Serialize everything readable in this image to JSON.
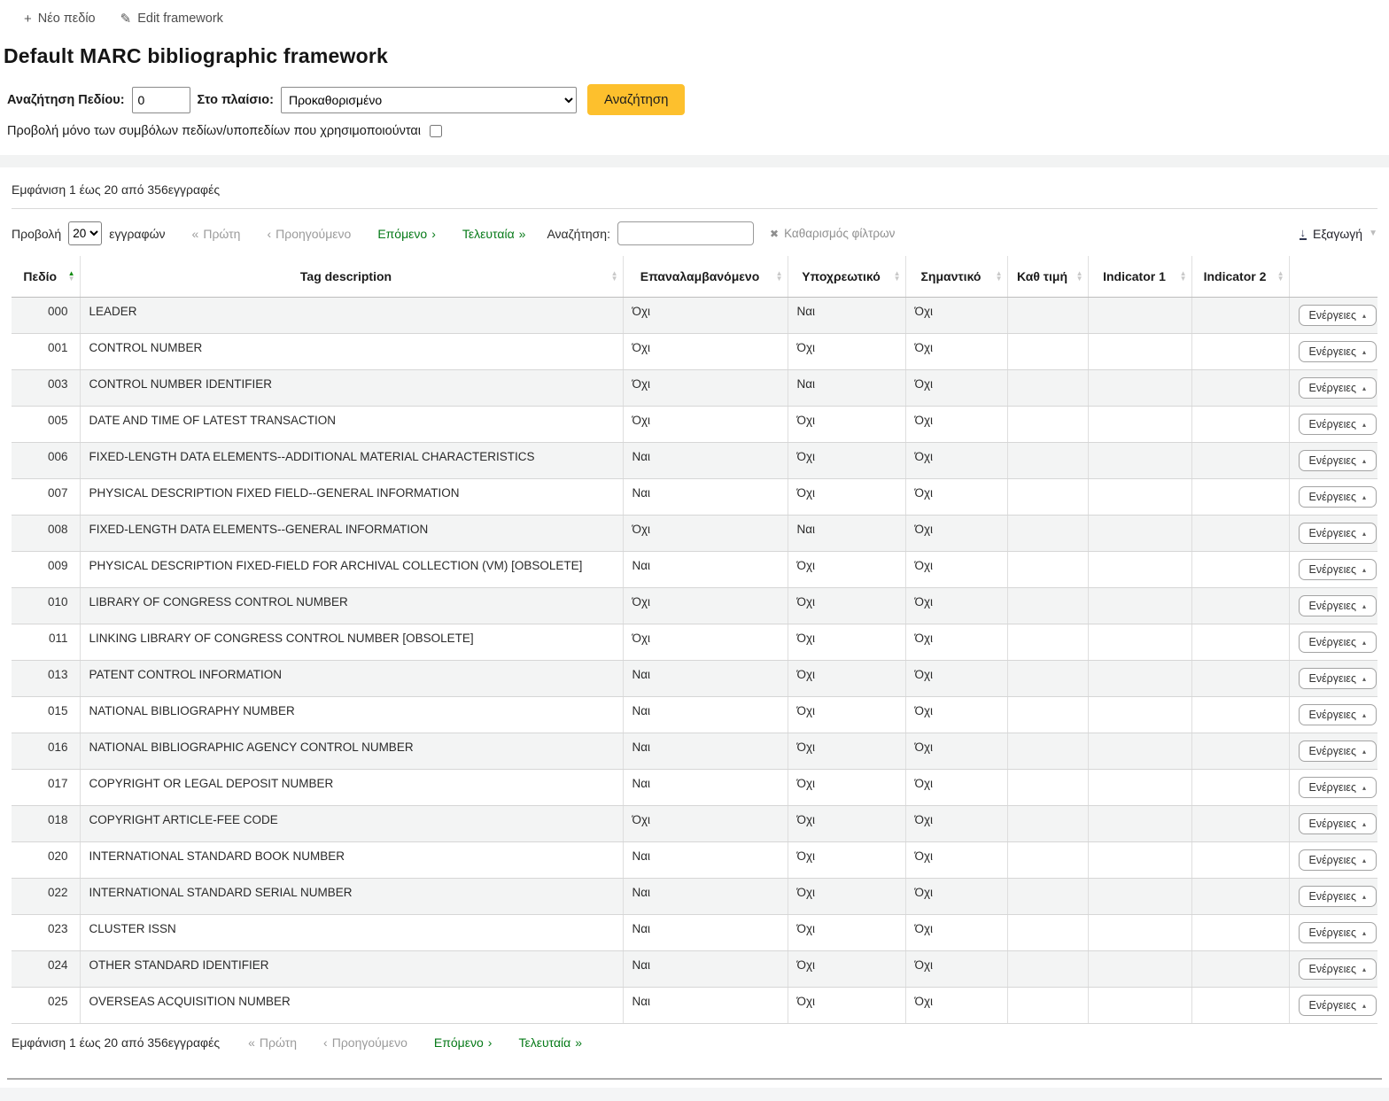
{
  "toolbar": {
    "new_field_label": "Νέο πεδίο",
    "edit_framework_label": "Edit framework"
  },
  "page": {
    "title": "Default MARC bibliographic framework"
  },
  "search_form": {
    "field_label": "Αναζήτηση Πεδίου:",
    "field_value": "0",
    "context_label": "Στο πλαίσιο:",
    "context_selected": "Προκαθορισμένο",
    "submit_label": "Αναζήτηση",
    "checkbox_label": "Προβολή μόνο των συμβόλων πεδίων/υποπεδίων που χρησιμοποιούνται"
  },
  "datatable": {
    "info": "Εμφάνιση 1 έως 20 από 356εγγραφές",
    "length_label_before": "Προβολή",
    "length_value": "20",
    "length_label_after": "εγγραφών",
    "pagination": {
      "first": "Πρώτη",
      "previous": "Προηγούμενο",
      "next": "Επόμενο",
      "last": "Τελευταία",
      "first_icon": "«",
      "previous_icon": "‹",
      "next_icon": "›",
      "last_icon": "»"
    },
    "filter_label": "Αναζήτηση:",
    "filter_value": "",
    "clear_filter_label": "Καθαρισμός φίλτρων",
    "export_label": "Εξαγωγή",
    "columns": [
      "Πεδίο",
      "Tag description",
      "Επαναλαμβανόμενο",
      "Υποχρεωτικό",
      "Σημαντικό",
      "Καθ τιμή",
      "Indicator 1",
      "Indicator 2",
      ""
    ],
    "actions_label": "Ενέργειες",
    "rows": [
      {
        "tag": "000",
        "description": "LEADER",
        "repeatable": "Όχι",
        "mandatory": "Ναι",
        "important": "Όχι",
        "default_value": "",
        "indicator1": "",
        "indicator2": ""
      },
      {
        "tag": "001",
        "description": "CONTROL NUMBER",
        "repeatable": "Όχι",
        "mandatory": "Όχι",
        "important": "Όχι",
        "default_value": "",
        "indicator1": "",
        "indicator2": ""
      },
      {
        "tag": "003",
        "description": "CONTROL NUMBER IDENTIFIER",
        "repeatable": "Όχι",
        "mandatory": "Ναι",
        "important": "Όχι",
        "default_value": "",
        "indicator1": "",
        "indicator2": ""
      },
      {
        "tag": "005",
        "description": "DATE AND TIME OF LATEST TRANSACTION",
        "repeatable": "Όχι",
        "mandatory": "Όχι",
        "important": "Όχι",
        "default_value": "",
        "indicator1": "",
        "indicator2": ""
      },
      {
        "tag": "006",
        "description": "FIXED-LENGTH DATA ELEMENTS--ADDITIONAL MATERIAL CHARACTERISTICS",
        "repeatable": "Ναι",
        "mandatory": "Όχι",
        "important": "Όχι",
        "default_value": "",
        "indicator1": "",
        "indicator2": ""
      },
      {
        "tag": "007",
        "description": "PHYSICAL DESCRIPTION FIXED FIELD--GENERAL INFORMATION",
        "repeatable": "Ναι",
        "mandatory": "Όχι",
        "important": "Όχι",
        "default_value": "",
        "indicator1": "",
        "indicator2": ""
      },
      {
        "tag": "008",
        "description": "FIXED-LENGTH DATA ELEMENTS--GENERAL INFORMATION",
        "repeatable": "Όχι",
        "mandatory": "Ναι",
        "important": "Όχι",
        "default_value": "",
        "indicator1": "",
        "indicator2": ""
      },
      {
        "tag": "009",
        "description": "PHYSICAL DESCRIPTION FIXED-FIELD FOR ARCHIVAL COLLECTION (VM) [OBSOLETE]",
        "repeatable": "Ναι",
        "mandatory": "Όχι",
        "important": "Όχι",
        "default_value": "",
        "indicator1": "",
        "indicator2": ""
      },
      {
        "tag": "010",
        "description": "LIBRARY OF CONGRESS CONTROL NUMBER",
        "repeatable": "Όχι",
        "mandatory": "Όχι",
        "important": "Όχι",
        "default_value": "",
        "indicator1": "",
        "indicator2": ""
      },
      {
        "tag": "011",
        "description": "LINKING LIBRARY OF CONGRESS CONTROL NUMBER [OBSOLETE]",
        "repeatable": "Όχι",
        "mandatory": "Όχι",
        "important": "Όχι",
        "default_value": "",
        "indicator1": "",
        "indicator2": ""
      },
      {
        "tag": "013",
        "description": "PATENT CONTROL INFORMATION",
        "repeatable": "Ναι",
        "mandatory": "Όχι",
        "important": "Όχι",
        "default_value": "",
        "indicator1": "",
        "indicator2": ""
      },
      {
        "tag": "015",
        "description": "NATIONAL BIBLIOGRAPHY NUMBER",
        "repeatable": "Ναι",
        "mandatory": "Όχι",
        "important": "Όχι",
        "default_value": "",
        "indicator1": "",
        "indicator2": ""
      },
      {
        "tag": "016",
        "description": "NATIONAL BIBLIOGRAPHIC AGENCY CONTROL NUMBER",
        "repeatable": "Ναι",
        "mandatory": "Όχι",
        "important": "Όχι",
        "default_value": "",
        "indicator1": "",
        "indicator2": ""
      },
      {
        "tag": "017",
        "description": "COPYRIGHT OR LEGAL DEPOSIT NUMBER",
        "repeatable": "Ναι",
        "mandatory": "Όχι",
        "important": "Όχι",
        "default_value": "",
        "indicator1": "",
        "indicator2": ""
      },
      {
        "tag": "018",
        "description": "COPYRIGHT ARTICLE-FEE CODE",
        "repeatable": "Όχι",
        "mandatory": "Όχι",
        "important": "Όχι",
        "default_value": "",
        "indicator1": "",
        "indicator2": ""
      },
      {
        "tag": "020",
        "description": "INTERNATIONAL STANDARD BOOK NUMBER",
        "repeatable": "Ναι",
        "mandatory": "Όχι",
        "important": "Όχι",
        "default_value": "",
        "indicator1": "",
        "indicator2": ""
      },
      {
        "tag": "022",
        "description": "INTERNATIONAL STANDARD SERIAL NUMBER",
        "repeatable": "Ναι",
        "mandatory": "Όχι",
        "important": "Όχι",
        "default_value": "",
        "indicator1": "",
        "indicator2": ""
      },
      {
        "tag": "023",
        "description": "CLUSTER ISSN",
        "repeatable": "Ναι",
        "mandatory": "Όχι",
        "important": "Όχι",
        "default_value": "",
        "indicator1": "",
        "indicator2": ""
      },
      {
        "tag": "024",
        "description": "OTHER STANDARD IDENTIFIER",
        "repeatable": "Ναι",
        "mandatory": "Όχι",
        "important": "Όχι",
        "default_value": "",
        "indicator1": "",
        "indicator2": ""
      },
      {
        "tag": "025",
        "description": "OVERSEAS ACQUISITION NUMBER",
        "repeatable": "Ναι",
        "mandatory": "Όχι",
        "important": "Όχι",
        "default_value": "",
        "indicator1": "",
        "indicator2": ""
      }
    ]
  },
  "colors": {
    "accent_yellow": "#fdc02d",
    "link_green": "#067a18",
    "sort_active_green": "#118a11",
    "stripe_gray": "#f3f4f4",
    "band_gray": "#f2f3f3"
  }
}
